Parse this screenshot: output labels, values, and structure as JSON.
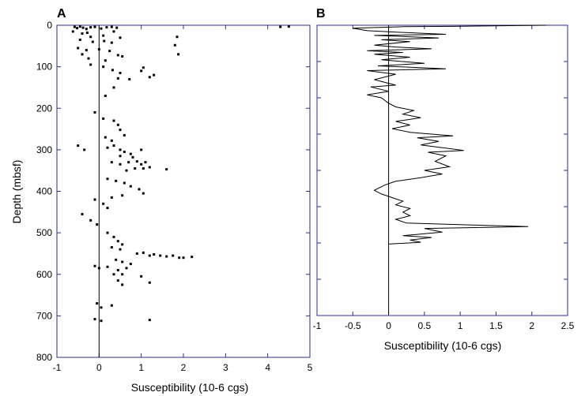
{
  "chart_data": [
    {
      "panel": "A",
      "type": "scatter",
      "xlabel": "Susceptibility (10-6 cgs)",
      "ylabel": "Depth (mbsf)",
      "xlim": [
        -1,
        5
      ],
      "ylim": [
        0,
        800
      ],
      "xticks": [
        -1,
        0,
        1,
        2,
        3,
        4,
        5
      ],
      "yticks": [
        0,
        100,
        200,
        300,
        400,
        500,
        600,
        700,
        800
      ],
      "y_inverted": true,
      "zero_line": true,
      "points": [
        [
          -0.58,
          4
        ],
        [
          -0.52,
          7
        ],
        [
          -0.45,
          3
        ],
        [
          -0.38,
          6
        ],
        [
          -0.3,
          9
        ],
        [
          -0.2,
          5
        ],
        [
          -0.1,
          4
        ],
        [
          0.05,
          8
        ],
        [
          0.18,
          5
        ],
        [
          0.3,
          4
        ],
        [
          0.42,
          6
        ],
        [
          4.3,
          4
        ],
        [
          4.5,
          3
        ],
        [
          -0.62,
          15
        ],
        [
          -0.4,
          20
        ],
        [
          -0.28,
          18
        ],
        [
          0.35,
          15
        ],
        [
          -0.2,
          28
        ],
        [
          0.1,
          25
        ],
        [
          0.5,
          30
        ],
        [
          -0.45,
          35
        ],
        [
          -0.15,
          40
        ],
        [
          0.12,
          38
        ],
        [
          0.3,
          42
        ],
        [
          1.85,
          28
        ],
        [
          1.8,
          48
        ],
        [
          1.88,
          70
        ],
        [
          -0.5,
          55
        ],
        [
          -0.3,
          60
        ],
        [
          0.0,
          58
        ],
        [
          0.25,
          62
        ],
        [
          -0.4,
          70
        ],
        [
          -0.25,
          80
        ],
        [
          0.15,
          85
        ],
        [
          0.45,
          72
        ],
        [
          0.55,
          75
        ],
        [
          -0.2,
          95
        ],
        [
          0.1,
          100
        ],
        [
          0.32,
          108
        ],
        [
          0.5,
          115
        ],
        [
          1.05,
          102
        ],
        [
          1.0,
          110
        ],
        [
          1.2,
          125
        ],
        [
          1.3,
          120
        ],
        [
          0.45,
          128
        ],
        [
          0.72,
          130
        ],
        [
          0.35,
          150
        ],
        [
          0.15,
          170
        ],
        [
          -0.1,
          210
        ],
        [
          0.1,
          225
        ],
        [
          0.35,
          230
        ],
        [
          0.45,
          240
        ],
        [
          0.5,
          252
        ],
        [
          0.6,
          265
        ],
        [
          0.15,
          270
        ],
        [
          0.3,
          278
        ],
        [
          -0.5,
          290
        ],
        [
          -0.35,
          300
        ],
        [
          0.2,
          295
        ],
        [
          0.35,
          290
        ],
        [
          0.5,
          300
        ],
        [
          0.6,
          305
        ],
        [
          0.75,
          310
        ],
        [
          1.0,
          300
        ],
        [
          0.5,
          315
        ],
        [
          0.8,
          318
        ],
        [
          0.3,
          330
        ],
        [
          0.5,
          335
        ],
        [
          0.7,
          330
        ],
        [
          0.9,
          328
        ],
        [
          1.0,
          335
        ],
        [
          1.1,
          330
        ],
        [
          1.2,
          342
        ],
        [
          0.85,
          345
        ],
        [
          0.65,
          350
        ],
        [
          1.05,
          345
        ],
        [
          1.6,
          347
        ],
        [
          0.2,
          370
        ],
        [
          0.4,
          375
        ],
        [
          0.6,
          380
        ],
        [
          0.75,
          388
        ],
        [
          0.95,
          395
        ],
        [
          1.05,
          405
        ],
        [
          0.55,
          410
        ],
        [
          0.3,
          415
        ],
        [
          -0.1,
          420
        ],
        [
          0.1,
          430
        ],
        [
          0.2,
          440
        ],
        [
          -0.4,
          455
        ],
        [
          -0.2,
          470
        ],
        [
          -0.05,
          480
        ],
        [
          0.2,
          500
        ],
        [
          0.35,
          510
        ],
        [
          0.45,
          520
        ],
        [
          0.55,
          528
        ],
        [
          0.3,
          535
        ],
        [
          0.5,
          540
        ],
        [
          0.9,
          550
        ],
        [
          1.05,
          548
        ],
        [
          1.2,
          555
        ],
        [
          1.3,
          552
        ],
        [
          1.45,
          555
        ],
        [
          1.6,
          557
        ],
        [
          1.75,
          555
        ],
        [
          1.9,
          560
        ],
        [
          2.0,
          560
        ],
        [
          2.2,
          558
        ],
        [
          0.4,
          565
        ],
        [
          0.55,
          570
        ],
        [
          0.75,
          575
        ],
        [
          -0.1,
          580
        ],
        [
          0.0,
          585
        ],
        [
          0.2,
          582
        ],
        [
          0.45,
          590
        ],
        [
          0.65,
          585
        ],
        [
          0.35,
          600
        ],
        [
          0.55,
          600
        ],
        [
          1.0,
          605
        ],
        [
          0.45,
          615
        ],
        [
          0.55,
          625
        ],
        [
          1.2,
          620
        ],
        [
          -0.05,
          670
        ],
        [
          0.05,
          680
        ],
        [
          0.3,
          675
        ],
        [
          -0.1,
          708
        ],
        [
          0.05,
          712
        ],
        [
          1.2,
          710
        ]
      ]
    },
    {
      "panel": "B",
      "type": "line",
      "xlabel": "Susceptibility (10-6 cgs)",
      "xlim": [
        -1,
        2.5
      ],
      "ylim": [
        0,
        800
      ],
      "xticks": [
        -1,
        -0.5,
        0,
        0.5,
        1,
        1.5,
        2,
        2.5
      ],
      "y_inverted": true,
      "zero_line": true,
      "series": [
        {
          "points": [
            [
              2.2,
              0
            ],
            [
              0.9,
              3
            ],
            [
              0.2,
              4
            ],
            [
              -0.5,
              8
            ],
            [
              -0.3,
              15
            ],
            [
              0.0,
              18
            ],
            [
              0.8,
              25
            ],
            [
              -0.2,
              28
            ],
            [
              0.7,
              35
            ],
            [
              -0.1,
              40
            ],
            [
              0.3,
              45
            ],
            [
              -0.2,
              55
            ],
            [
              0.1,
              60
            ],
            [
              0.6,
              65
            ],
            [
              -0.3,
              70
            ],
            [
              0.2,
              75
            ],
            [
              -0.2,
              80
            ],
            [
              0.3,
              88
            ],
            [
              -0.1,
              95
            ],
            [
              0.5,
              105
            ],
            [
              -0.15,
              112
            ],
            [
              0.8,
              120
            ],
            [
              -0.3,
              125
            ],
            [
              0.1,
              135
            ],
            [
              -0.2,
              150
            ],
            [
              0.1,
              165
            ],
            [
              -0.25,
              170
            ],
            [
              0.0,
              182
            ],
            [
              -0.3,
              192
            ],
            [
              -0.1,
              200
            ],
            [
              0.0,
              215
            ],
            [
              0.1,
              225
            ],
            [
              0.35,
              235
            ],
            [
              0.2,
              245
            ],
            [
              0.45,
              255
            ],
            [
              0.1,
              265
            ],
            [
              0.3,
              275
            ],
            [
              0.05,
              285
            ],
            [
              0.3,
              295
            ],
            [
              0.6,
              300
            ],
            [
              0.9,
              305
            ],
            [
              0.4,
              310
            ],
            [
              0.7,
              320
            ],
            [
              0.45,
              330
            ],
            [
              0.85,
              340
            ],
            [
              1.05,
              345
            ],
            [
              0.55,
              350
            ],
            [
              0.8,
              360
            ],
            [
              0.65,
              375
            ],
            [
              0.85,
              390
            ],
            [
              0.5,
              400
            ],
            [
              0.75,
              410
            ],
            [
              0.45,
              420
            ],
            [
              0.1,
              430
            ],
            [
              -0.05,
              440
            ],
            [
              -0.2,
              455
            ],
            [
              -0.1,
              465
            ],
            [
              0.05,
              475
            ],
            [
              0.2,
              485
            ],
            [
              0.1,
              495
            ],
            [
              0.3,
              505
            ],
            [
              0.2,
              515
            ],
            [
              0.3,
              525
            ],
            [
              0.1,
              535
            ],
            [
              0.25,
              545
            ],
            [
              1.95,
              555
            ],
            [
              0.5,
              560
            ],
            [
              0.75,
              570
            ],
            [
              0.2,
              580
            ],
            [
              0.6,
              585
            ],
            [
              0.3,
              592
            ],
            [
              0.45,
              598
            ],
            [
              0.0,
              603
            ]
          ]
        }
      ]
    }
  ]
}
